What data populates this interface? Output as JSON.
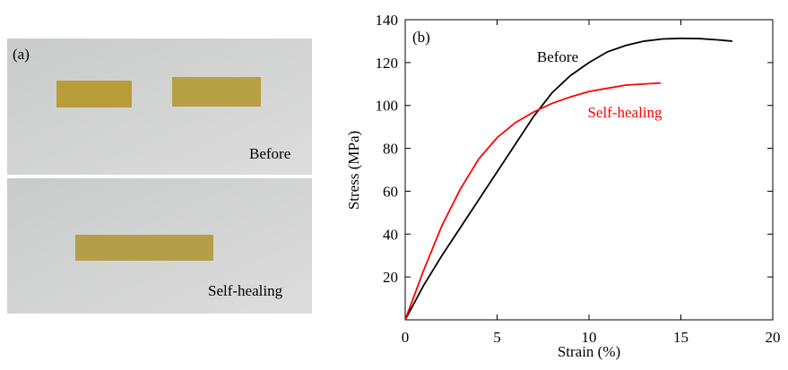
{
  "panel_a": {
    "label": "(a)",
    "top_caption": "Before",
    "bottom_caption": "Self-healing"
  },
  "chart_data": {
    "type": "line",
    "label": "(b)",
    "xlabel": "Strain (%)",
    "ylabel": "Stress (MPa)",
    "xlim": [
      0,
      20
    ],
    "xticks": [
      0,
      5,
      10,
      15,
      20
    ],
    "ylim": [
      0,
      140
    ],
    "yticks": [
      20,
      40,
      60,
      80,
      100,
      120,
      140
    ],
    "series": [
      {
        "name": "Before",
        "color": "#000000",
        "x": [
          0,
          1,
          2,
          3,
          4,
          5,
          6,
          7,
          8,
          9,
          10,
          11,
          12,
          13,
          14,
          15,
          16,
          17,
          17.8
        ],
        "values": [
          0,
          16,
          30,
          43,
          56,
          69,
          82,
          95,
          106,
          114,
          120,
          125,
          128,
          130,
          131,
          131.3,
          131.2,
          130.6,
          130
        ]
      },
      {
        "name": "Self-healing",
        "color": "#ff0000",
        "x": [
          0,
          1,
          2,
          3,
          4,
          5,
          6,
          7,
          8,
          9,
          10,
          11,
          12,
          13,
          13.9
        ],
        "values": [
          0,
          23,
          44,
          61,
          75,
          85,
          92,
          97,
          101,
          104,
          106.5,
          108,
          109.5,
          110,
          110.5
        ]
      }
    ]
  }
}
